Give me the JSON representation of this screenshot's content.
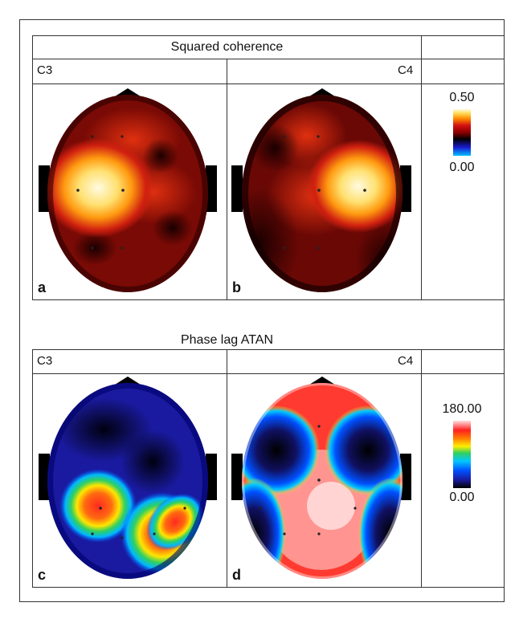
{
  "top": {
    "title": "Squared coherence",
    "left_label": "C3",
    "right_label": "C4",
    "letters": [
      "a",
      "b"
    ],
    "scale_max": "0.50",
    "scale_min": "0.00"
  },
  "bottom": {
    "title": "Phase lag ATAN",
    "left_label": "C3",
    "right_label": "C4",
    "letters": [
      "c",
      "d"
    ],
    "scale_max": "180.00",
    "scale_min": "0.00"
  },
  "colors": {
    "coherence_scale": [
      "#00bfff",
      "#1b1bd0",
      "#000000",
      "#8b0000",
      "#d21010",
      "#ff8c00",
      "#ffe060",
      "#fffbe0"
    ],
    "phase_scale": [
      "#000000",
      "#1a1a9a",
      "#0050ff",
      "#00c8ff",
      "#30d060",
      "#ffee00",
      "#ff7a00",
      "#ff2020",
      "#ffe0e0"
    ]
  }
}
